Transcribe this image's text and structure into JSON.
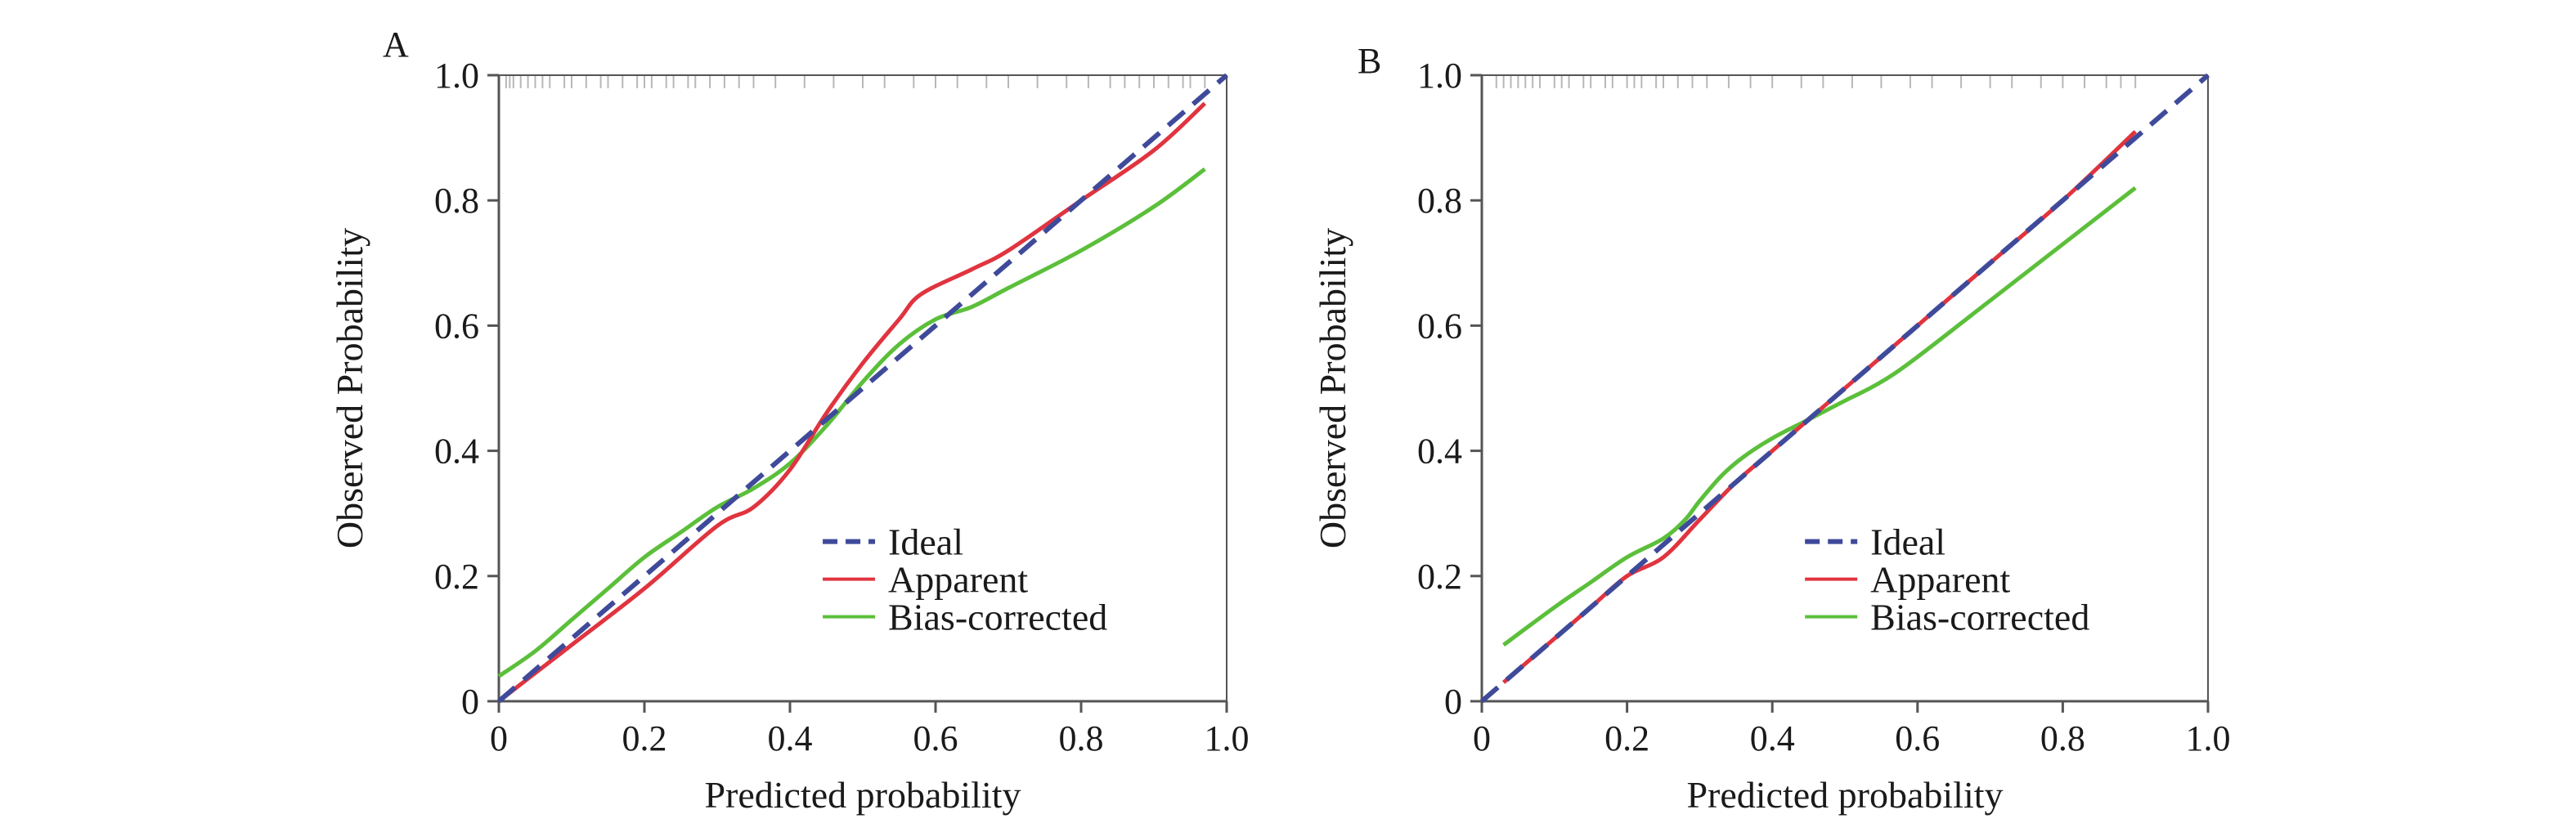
{
  "colors": {
    "ideal": "#3f4a9a",
    "apparent": "#e0343f",
    "bias_corrected": "#5bbf3a",
    "axis": "#555555",
    "rug": "#b8b8b8"
  },
  "chart_data": [
    {
      "panel": "A",
      "type": "line",
      "xlabel": "Predicted probability",
      "ylabel": "Observed Probability",
      "xlim": [
        0,
        1
      ],
      "ylim": [
        0,
        1
      ],
      "xticks": [
        "0",
        "0.2",
        "0.4",
        "0.6",
        "0.8",
        "1.0"
      ],
      "yticks": [
        "0",
        "0.2",
        "0.4",
        "0.6",
        "0.8",
        "1.0"
      ],
      "legend": [
        "Ideal",
        "Apparent",
        "Bias-corrected"
      ],
      "legend_position": "lower-right",
      "series": [
        {
          "name": "Ideal",
          "style": "dashed",
          "x": [
            0,
            1
          ],
          "y": [
            0,
            1
          ]
        },
        {
          "name": "Apparent",
          "style": "solid",
          "x": [
            0,
            0.1,
            0.2,
            0.3,
            0.35,
            0.4,
            0.45,
            0.5,
            0.55,
            0.58,
            0.65,
            0.7,
            0.8,
            0.9,
            0.97
          ],
          "y": [
            0.0,
            0.09,
            0.18,
            0.28,
            0.31,
            0.37,
            0.46,
            0.54,
            0.61,
            0.65,
            0.69,
            0.72,
            0.8,
            0.88,
            0.955
          ]
        },
        {
          "name": "Bias-corrected",
          "style": "solid",
          "x": [
            0,
            0.05,
            0.1,
            0.15,
            0.2,
            0.25,
            0.3,
            0.35,
            0.4,
            0.45,
            0.5,
            0.55,
            0.6,
            0.65,
            0.7,
            0.8,
            0.9,
            0.97
          ],
          "y": [
            0.04,
            0.08,
            0.13,
            0.18,
            0.23,
            0.27,
            0.31,
            0.34,
            0.38,
            0.44,
            0.51,
            0.57,
            0.61,
            0.63,
            0.66,
            0.72,
            0.79,
            0.85
          ]
        }
      ],
      "rug_x": [
        0.01,
        0.015,
        0.02,
        0.03,
        0.04,
        0.05,
        0.06,
        0.07,
        0.09,
        0.1,
        0.12,
        0.14,
        0.15,
        0.17,
        0.19,
        0.2,
        0.21,
        0.23,
        0.24,
        0.26,
        0.27,
        0.29,
        0.31,
        0.33,
        0.35,
        0.38,
        0.42,
        0.46,
        0.5,
        0.53,
        0.57,
        0.6,
        0.63,
        0.67,
        0.7,
        0.74,
        0.78,
        0.81,
        0.84,
        0.86,
        0.88,
        0.9,
        0.92,
        0.94,
        0.95,
        0.97
      ]
    },
    {
      "panel": "B",
      "type": "line",
      "xlabel": "Predicted probability",
      "ylabel": "Observed Probability",
      "xlim": [
        0,
        1
      ],
      "ylim": [
        0,
        1
      ],
      "xticks": [
        "0",
        "0.2",
        "0.4",
        "0.6",
        "0.8",
        "1.0"
      ],
      "yticks": [
        "0",
        "0.2",
        "0.4",
        "0.6",
        "0.8",
        "1.0"
      ],
      "legend": [
        "Ideal",
        "Apparent",
        "Bias-corrected"
      ],
      "legend_position": "lower-right",
      "series": [
        {
          "name": "Ideal",
          "style": "dashed",
          "x": [
            0,
            1
          ],
          "y": [
            0,
            1
          ]
        },
        {
          "name": "Apparent",
          "style": "solid",
          "x": [
            0.03,
            0.1,
            0.15,
            0.2,
            0.25,
            0.3,
            0.35,
            0.4,
            0.5,
            0.6,
            0.7,
            0.8,
            0.9
          ],
          "y": [
            0.03,
            0.1,
            0.15,
            0.2,
            0.23,
            0.29,
            0.35,
            0.4,
            0.5,
            0.6,
            0.7,
            0.8,
            0.91
          ]
        },
        {
          "name": "Bias-corrected",
          "style": "solid",
          "x": [
            0.03,
            0.1,
            0.15,
            0.2,
            0.25,
            0.28,
            0.3,
            0.33,
            0.36,
            0.4,
            0.45,
            0.5,
            0.55,
            0.6,
            0.7,
            0.8,
            0.9
          ],
          "y": [
            0.09,
            0.15,
            0.19,
            0.23,
            0.26,
            0.29,
            0.32,
            0.36,
            0.39,
            0.42,
            0.45,
            0.48,
            0.51,
            0.55,
            0.64,
            0.73,
            0.82
          ]
        }
      ],
      "rug_x": [
        0.02,
        0.03,
        0.04,
        0.05,
        0.06,
        0.07,
        0.08,
        0.1,
        0.11,
        0.12,
        0.14,
        0.15,
        0.17,
        0.18,
        0.2,
        0.21,
        0.22,
        0.24,
        0.25,
        0.27,
        0.29,
        0.31,
        0.34,
        0.37,
        0.4,
        0.44,
        0.47,
        0.51,
        0.55,
        0.59,
        0.62,
        0.66,
        0.7,
        0.73,
        0.77,
        0.8,
        0.83,
        0.86,
        0.88,
        0.9
      ]
    }
  ]
}
